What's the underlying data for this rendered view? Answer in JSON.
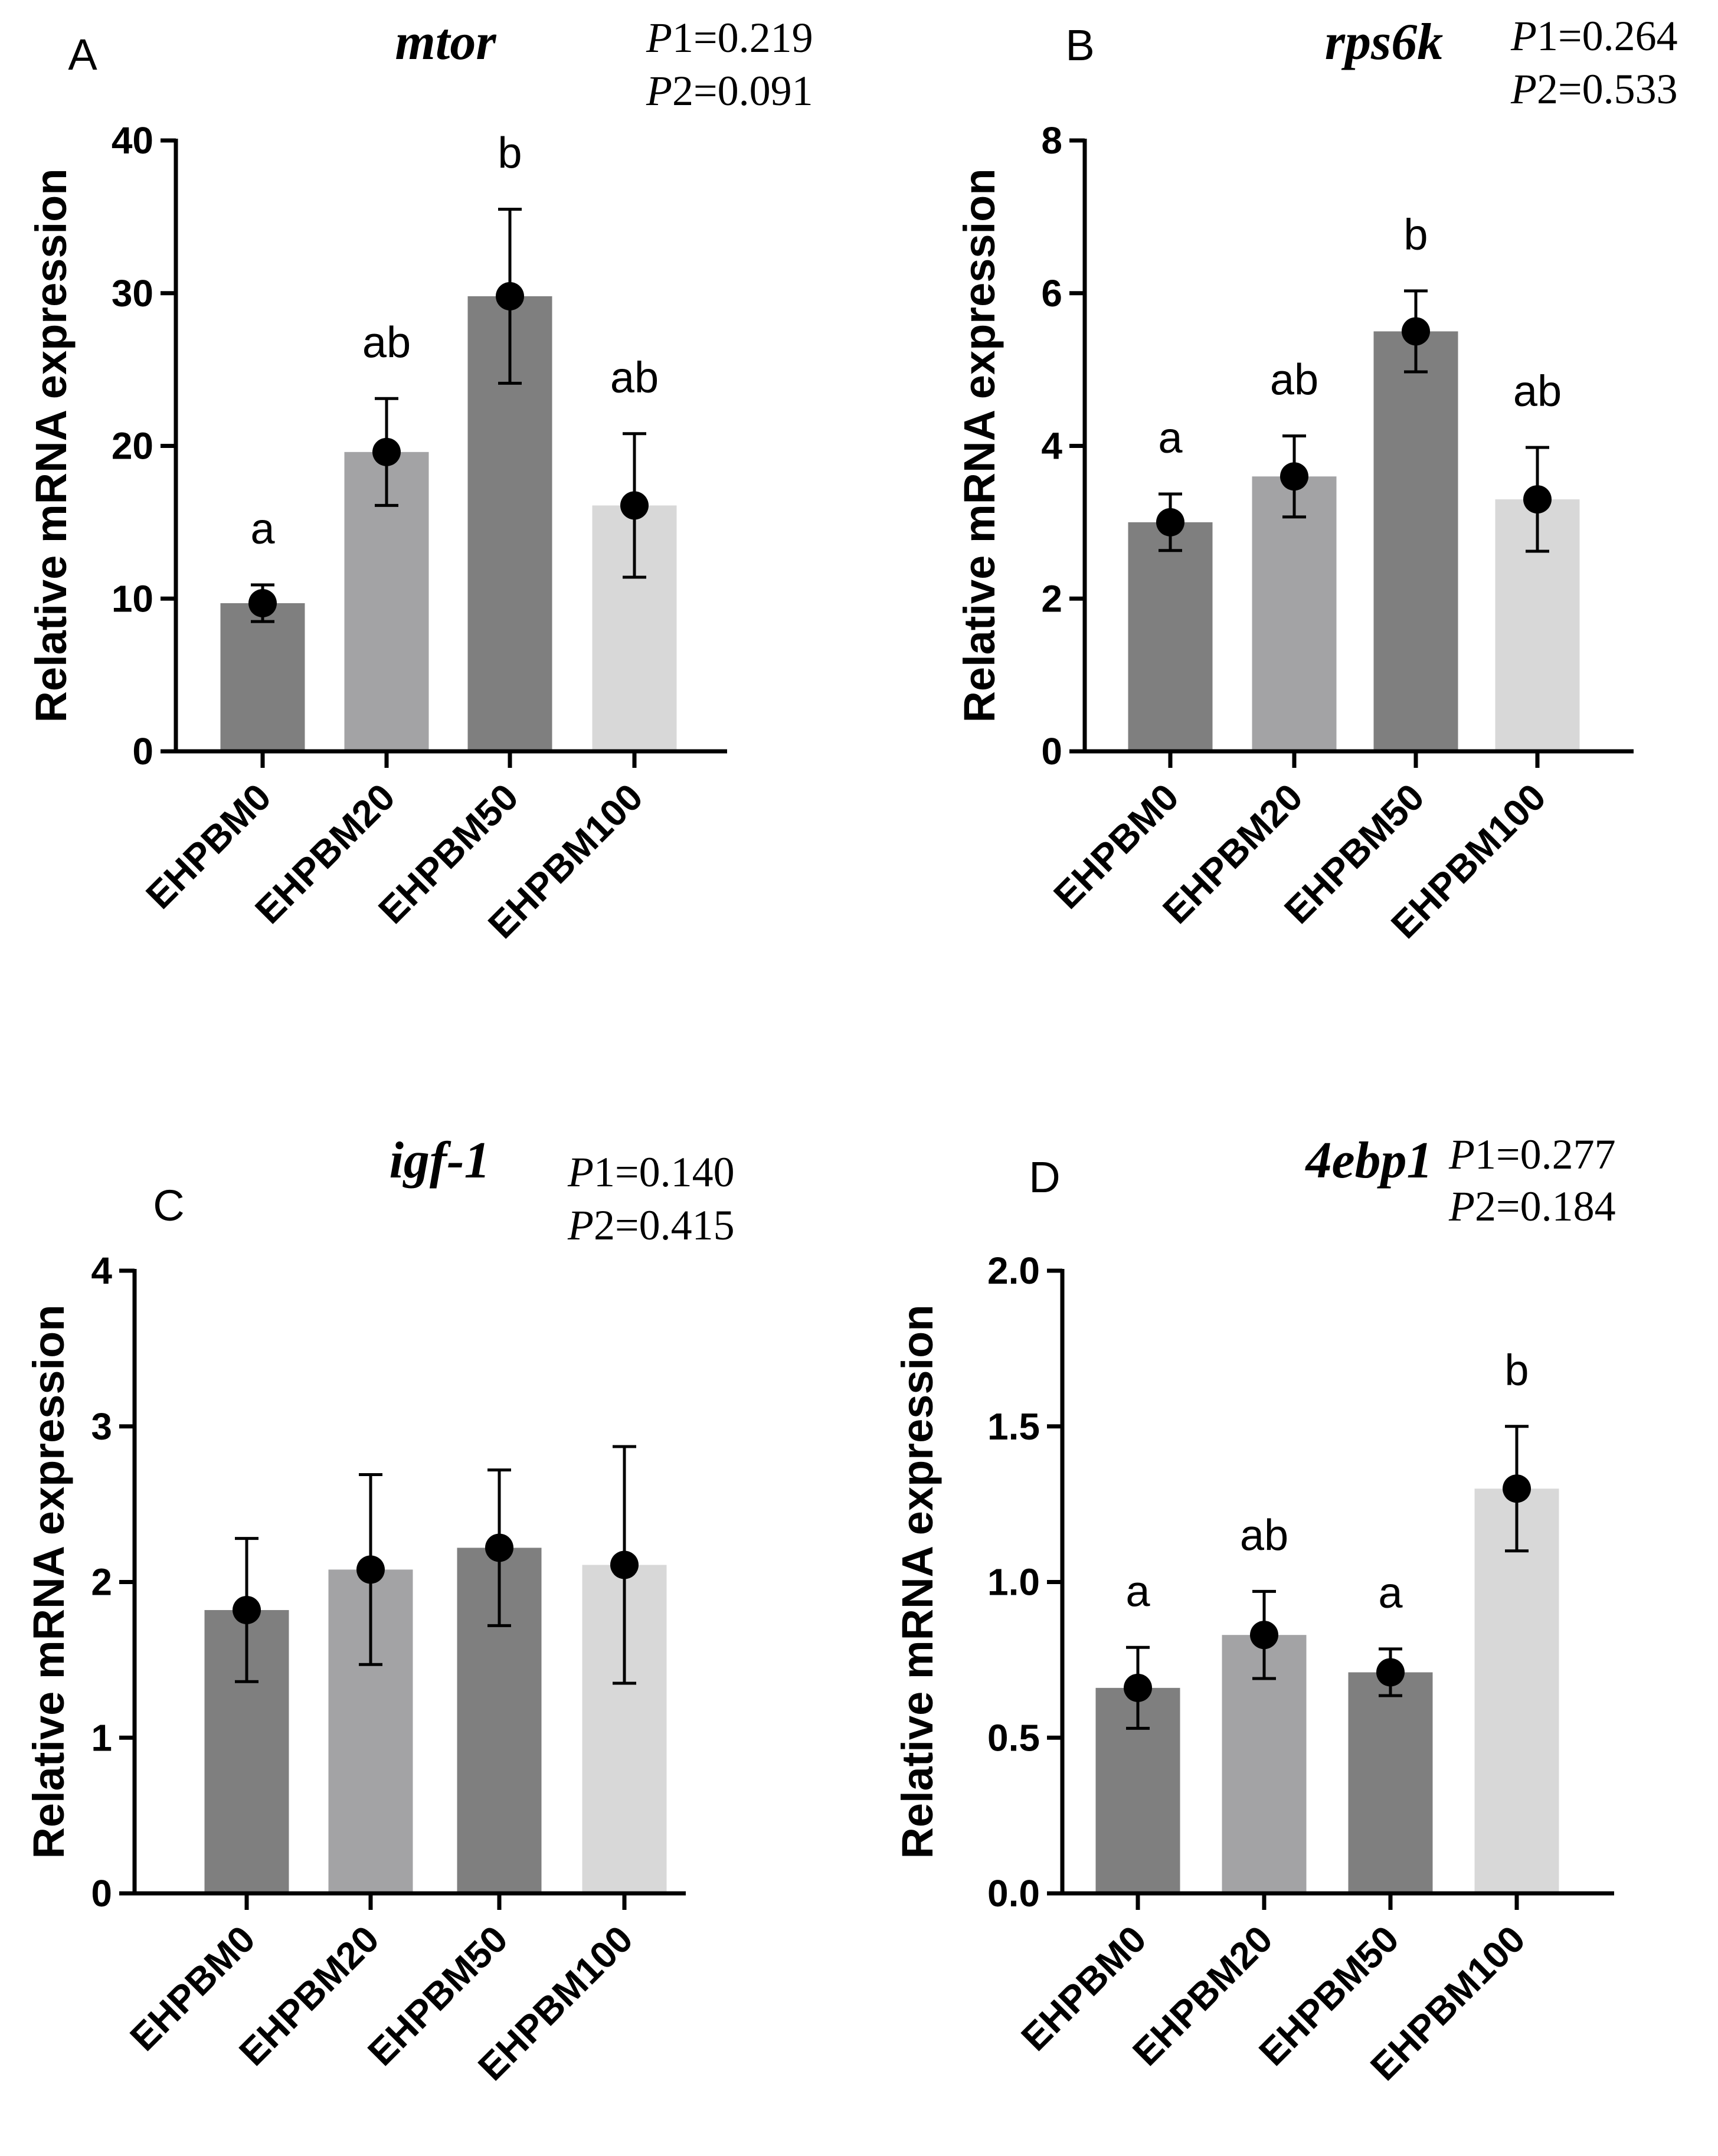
{
  "chart_data": [
    {
      "type": "bar",
      "panel": "A",
      "title": "mtor",
      "p_values": [
        {
          "label": "P",
          "num": "1",
          "value": "=0.219"
        },
        {
          "label": "P",
          "num": "2",
          "value": "=0.091"
        }
      ],
      "ylabel": "Relative mRNA expression",
      "ylim": [
        0,
        40
      ],
      "yticks": [
        "0",
        "10",
        "20",
        "30",
        "40"
      ],
      "categories": [
        "EHPBM0",
        "EHPBM20",
        "EHPBM50",
        "EHPBM100"
      ],
      "values": [
        9.7,
        19.6,
        29.8,
        16.1
      ],
      "errors": [
        1.2,
        3.5,
        5.7,
        4.7
      ],
      "letters": [
        "a",
        "ab",
        "b",
        "ab"
      ],
      "colors": [
        "#7f7f7f",
        "#a3a3a5",
        "#7f7f7f",
        "#d8d8d8"
      ]
    },
    {
      "type": "bar",
      "panel": "B",
      "title": "rps6k",
      "p_values": [
        {
          "label": "P",
          "num": "1",
          "value": "=0.264"
        },
        {
          "label": "P",
          "num": "2",
          "value": "=0.533"
        }
      ],
      "ylabel": "Relative mRNA expression",
      "ylim": [
        0,
        8
      ],
      "yticks": [
        "0",
        "2",
        "4",
        "6",
        "8"
      ],
      "categories": [
        "EHPBM0",
        "EHPBM20",
        "EHPBM50",
        "EHPBM100"
      ],
      "values": [
        3.0,
        3.6,
        5.5,
        3.3
      ],
      "errors": [
        0.37,
        0.53,
        0.53,
        0.68
      ],
      "letters": [
        "a",
        "ab",
        "b",
        "ab"
      ],
      "colors": [
        "#7f7f7f",
        "#a3a3a5",
        "#7f7f7f",
        "#d8d8d8"
      ]
    },
    {
      "type": "bar",
      "panel": "C",
      "title": "igf-1",
      "p_values": [
        {
          "label": "P",
          "num": "1",
          "value": "=0.140"
        },
        {
          "label": "P",
          "num": "2",
          "value": "=0.415"
        }
      ],
      "ylabel": "Relative mRNA expression",
      "ylim": [
        0,
        4
      ],
      "yticks": [
        "0",
        "1",
        "2",
        "3",
        "4"
      ],
      "categories": [
        "EHPBM0",
        "EHPBM20",
        "EHPBM50",
        "EHPBM100"
      ],
      "values": [
        1.82,
        2.08,
        2.22,
        2.11
      ],
      "errors": [
        0.46,
        0.61,
        0.5,
        0.76
      ],
      "letters": [
        "",
        "",
        "",
        ""
      ],
      "colors": [
        "#7f7f7f",
        "#a3a3a5",
        "#7f7f7f",
        "#d8d8d8"
      ]
    },
    {
      "type": "bar",
      "panel": "D",
      "title": "4ebp1",
      "p_values": [
        {
          "label": "P",
          "num": "1",
          "value": "=0.277"
        },
        {
          "label": "P",
          "num": "2",
          "value": "=0.184"
        }
      ],
      "ylabel": "Relative mRNA expression",
      "ylim": [
        0,
        2
      ],
      "yticks": [
        "0.0",
        "0.5",
        "1.0",
        "1.5",
        "2.0"
      ],
      "categories": [
        "EHPBM0",
        "EHPBM20",
        "EHPBM50",
        "EHPBM100"
      ],
      "values": [
        0.66,
        0.83,
        0.71,
        1.3
      ],
      "errors": [
        0.13,
        0.14,
        0.075,
        0.2
      ],
      "letters": [
        "a",
        "ab",
        "a",
        "b"
      ],
      "colors": [
        "#7f7f7f",
        "#a3a3a5",
        "#7f7f7f",
        "#d8d8d8"
      ]
    }
  ]
}
